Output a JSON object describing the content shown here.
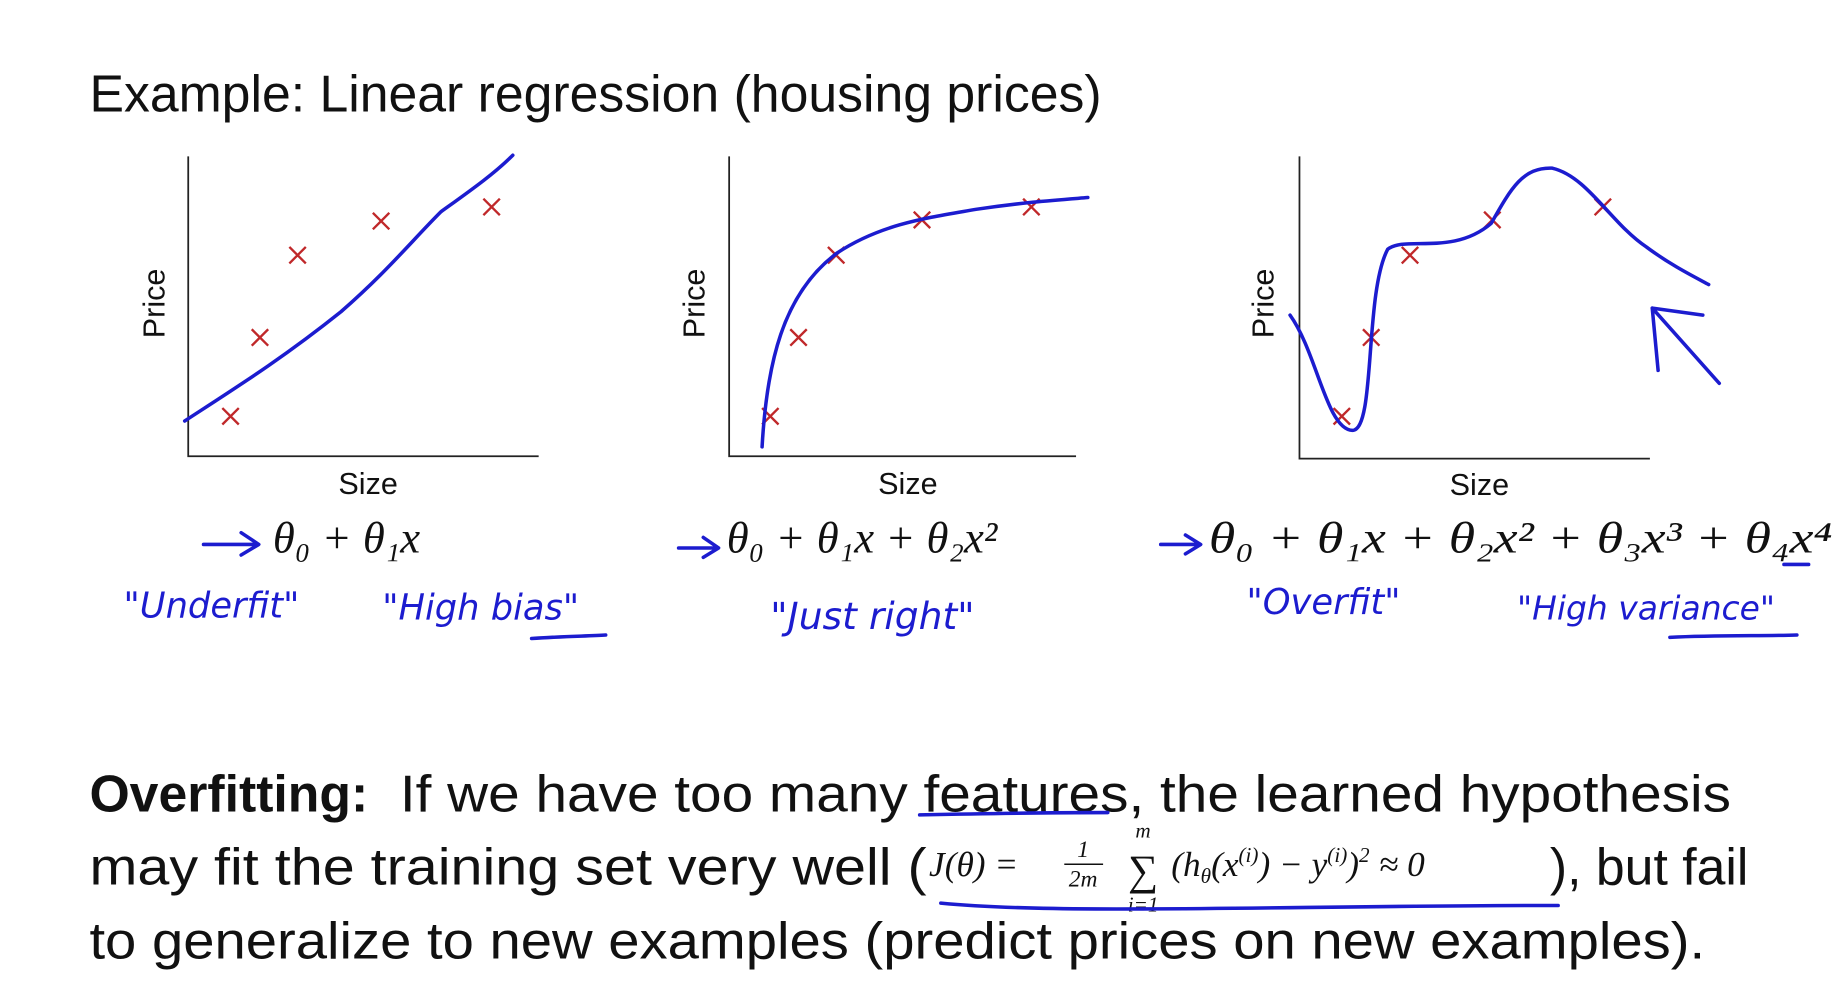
{
  "title": "Example: Linear regression (housing prices)",
  "panels": [
    {
      "y_label": "Price",
      "x_label": "Size",
      "hypothesis": "θ₀ + θ₁x",
      "notes": [
        "\"Underfit\"",
        "\"High bias\""
      ]
    },
    {
      "y_label": "Price",
      "x_label": "Size",
      "hypothesis": "θ₀ + θ₁x + θ₂x²",
      "notes": [
        "\"Just right\""
      ]
    },
    {
      "y_label": "Price",
      "x_label": "Size",
      "hypothesis": "θ₀ + θ₁x + θ₂x² + θ₃x³ + θ₄x⁴",
      "notes": [
        "\"Overfit\"",
        "\"High variance\""
      ]
    }
  ],
  "overfitting": {
    "term": "Overfitting:",
    "line1": "If we have too many features, the learned hypothesis",
    "line2_start": "may fit the training set very well (",
    "formula": {
      "lhs": "J(θ) =",
      "numerator": "1",
      "denominator": "2m",
      "sum": "∑",
      "sum_upper": "m",
      "sum_lower": "i=1",
      "body": [
        "(h",
        "θ",
        "(x",
        "(i)",
        ") − y",
        "(i)",
        ")",
        "2",
        "≈ 0"
      ]
    },
    "line2_end": "), but fail",
    "line3": "to generalize to new examples (predict prices on new examples)."
  }
}
